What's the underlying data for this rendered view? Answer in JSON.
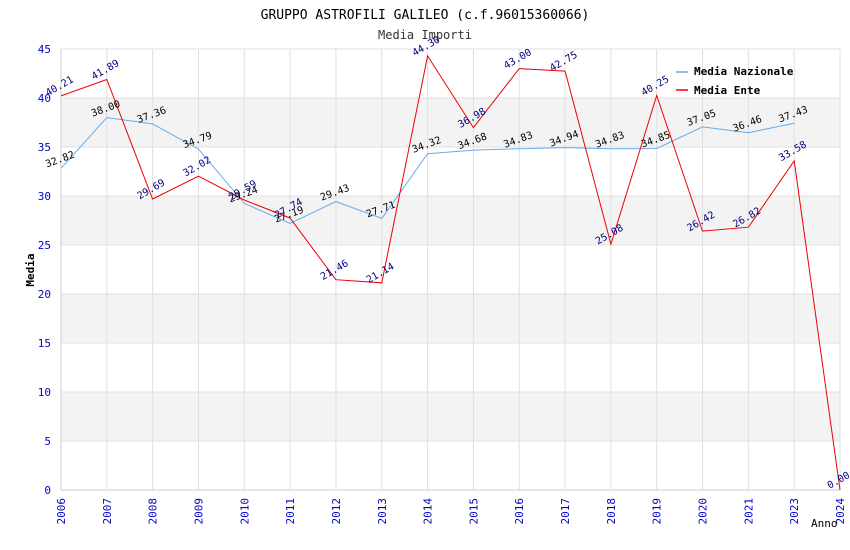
{
  "chart_data": {
    "type": "line",
    "title": "GRUPPO ASTROFILI GALILEO (c.f.96015360066)",
    "subtitle": "Media Importi",
    "xlabel": "Anno",
    "ylabel": "Media",
    "ylim": [
      0,
      45
    ],
    "yticks": [
      "0",
      "5",
      "10",
      "15",
      "20",
      "25",
      "30",
      "35",
      "40",
      "45"
    ],
    "categories": [
      "2006",
      "2007",
      "2008",
      "2009",
      "2010",
      "2011",
      "2012",
      "2013",
      "2014",
      "2015",
      "2016",
      "2017",
      "2018",
      "2019",
      "2020",
      "2021",
      "2023",
      "2024"
    ],
    "grid": true,
    "legend_position": "top-right",
    "series": [
      {
        "name": "Media Nazionale",
        "color": "#66aaee",
        "values": [
          32.82,
          38.0,
          37.36,
          34.79,
          29.24,
          27.19,
          29.43,
          27.71,
          34.32,
          34.68,
          34.83,
          34.94,
          34.83,
          34.85,
          37.05,
          36.46,
          37.43,
          null
        ],
        "labels": [
          "32.82",
          "38.00",
          "37.36",
          "34.79",
          "29.24",
          "27.19",
          "29.43",
          "27.71",
          "34.32",
          "34.68",
          "34.83",
          "34.94",
          "34.83",
          "34.85",
          "37.05",
          "36.46",
          "37.43",
          ""
        ]
      },
      {
        "name": "Media Ente",
        "color": "#ee0000",
        "values": [
          40.21,
          41.89,
          29.69,
          32.02,
          29.59,
          27.74,
          21.46,
          21.14,
          44.3,
          36.98,
          43.0,
          42.75,
          25.08,
          40.25,
          26.42,
          26.82,
          33.58,
          0.0
        ],
        "labels": [
          "40.21",
          "41.89",
          "29.69",
          "32.02",
          "29.59",
          "27.74",
          "21.46",
          "21.14",
          "44.30",
          "36.98",
          "43.00",
          "42.75",
          "25.08",
          "40.25",
          "26.42",
          "26.82",
          "33.58",
          "0.00"
        ]
      }
    ]
  }
}
